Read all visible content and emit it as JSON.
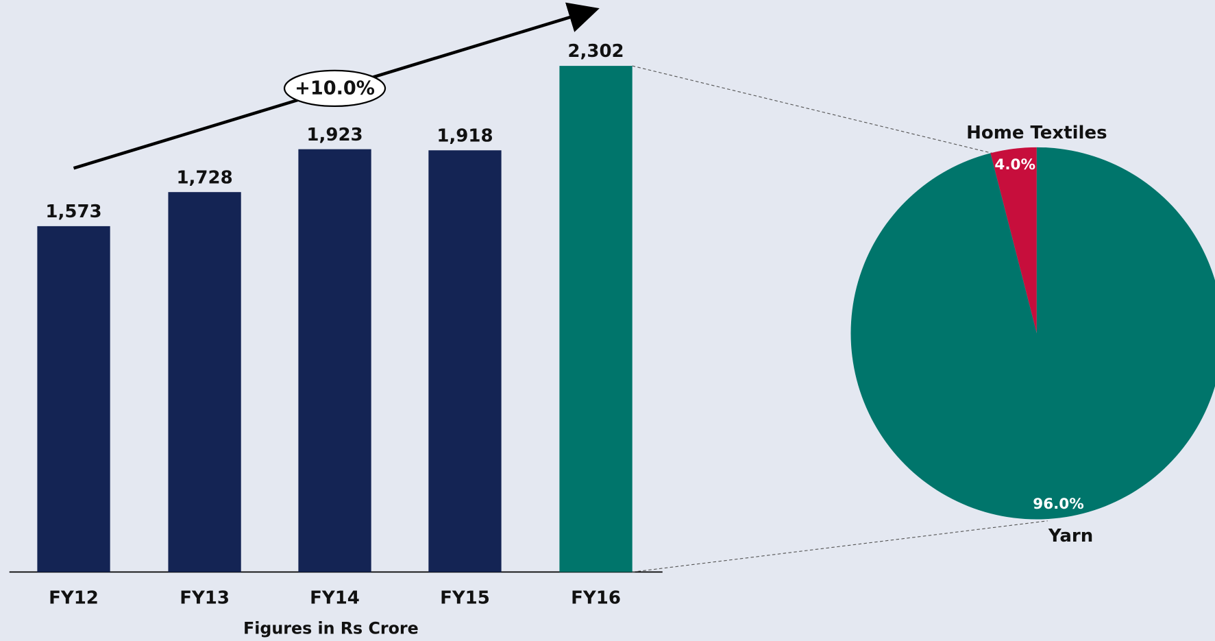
{
  "chart_data": [
    {
      "type": "bar",
      "categories": [
        "FY12",
        "FY13",
        "FY14",
        "FY15",
        "FY16"
      ],
      "values": [
        1573,
        1728,
        1923,
        1918,
        2302
      ],
      "value_labels": [
        "1,573",
        "1,728",
        "1,923",
        "1,918",
        "2,302"
      ],
      "colors": [
        "#142454",
        "#142454",
        "#142454",
        "#142454",
        "#00756b"
      ],
      "annotation": "+10.0%",
      "x_label": "Figures in Rs Crore"
    },
    {
      "type": "pie",
      "categories": [
        "Home Textiles",
        "Yarn"
      ],
      "values": [
        4,
        96
      ],
      "value_labels": [
        "4.0%",
        "96.0%"
      ],
      "colors": [
        "#c70e3c",
        "#00756b"
      ]
    }
  ]
}
